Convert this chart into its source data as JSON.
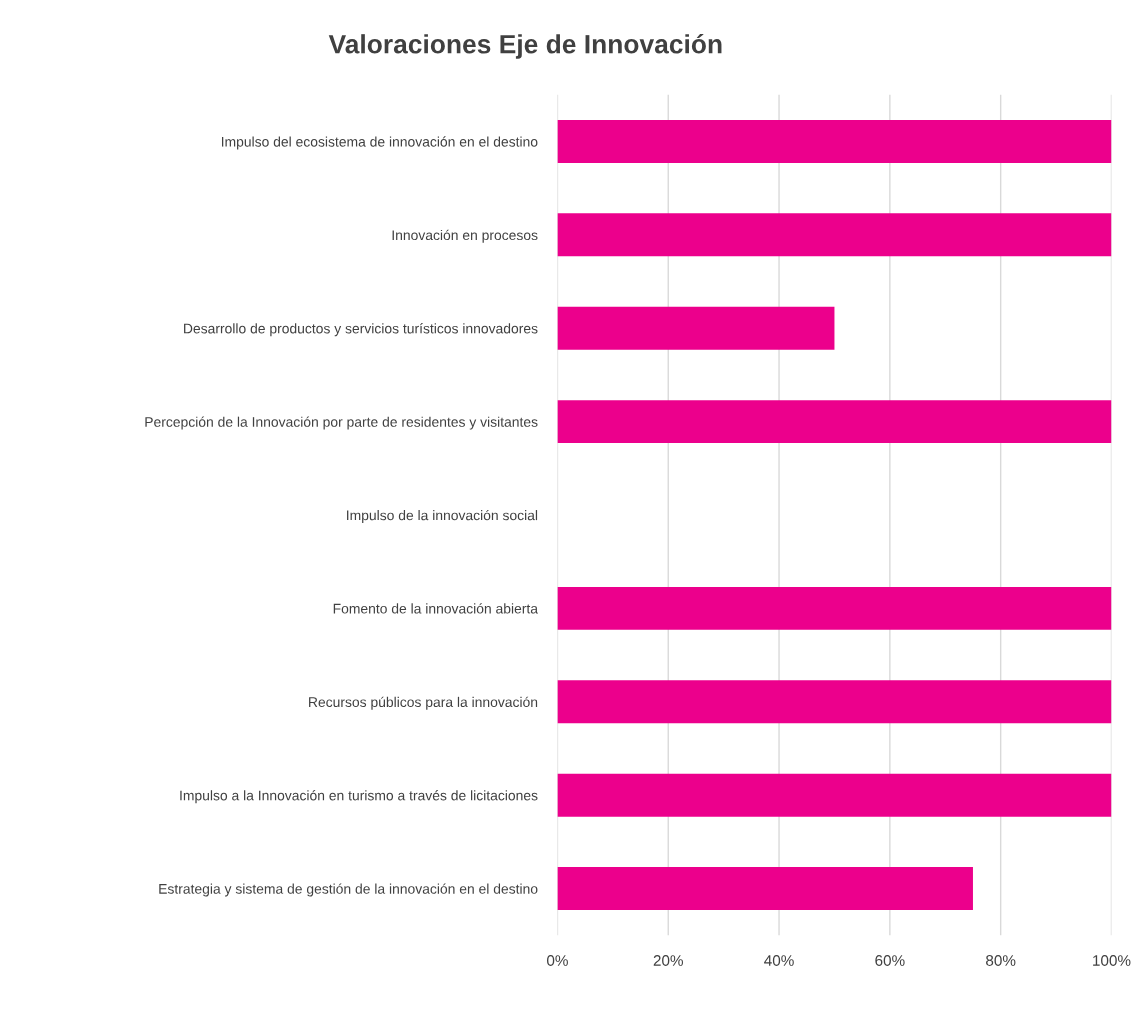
{
  "chart_data": {
    "type": "bar",
    "orientation": "horizontal",
    "title": "Valoraciones Eje de Innovación",
    "categories": [
      "Impulso del ecosistema de innovación en el destino",
      "Innovación en procesos",
      "Desarrollo de productos y servicios turísticos innovadores",
      "Percepción de la Innovación por parte de residentes y visitantes",
      "Impulso de la innovación social",
      "Fomento de la innovación abierta",
      "Recursos públicos para la innovación",
      "Impulso a la Innovación en turismo a través de licitaciones",
      "Estrategia y sistema de gestión de la innovación en el destino"
    ],
    "values": [
      100,
      100,
      50,
      100,
      0,
      100,
      100,
      100,
      75
    ],
    "color": "#ec008c",
    "xlim": [
      0,
      100
    ],
    "xticks": [
      {
        "value": 0,
        "label": "0%"
      },
      {
        "value": 20,
        "label": "20%"
      },
      {
        "value": 40,
        "label": "40%"
      },
      {
        "value": 60,
        "label": "60%"
      },
      {
        "value": 80,
        "label": "80%"
      },
      {
        "value": 100,
        "label": "100%"
      }
    ],
    "grid": "x",
    "legend": false
  }
}
